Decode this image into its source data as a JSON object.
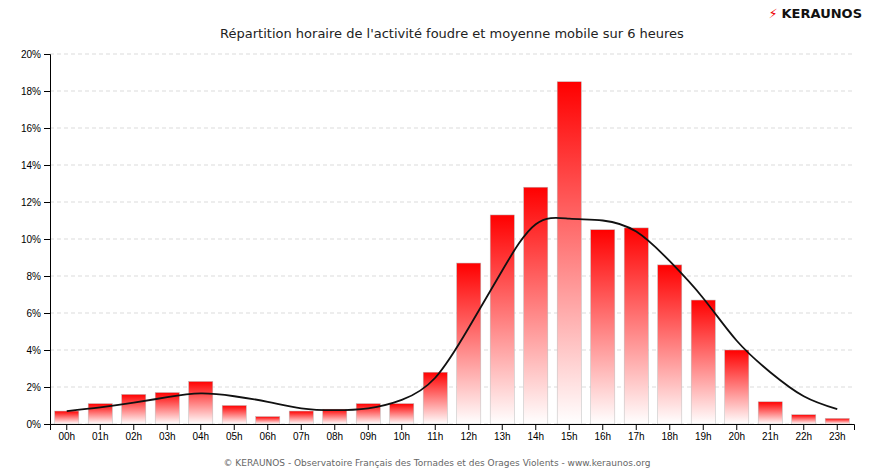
{
  "chart_data": {
    "type": "bar",
    "title": "Répartition horaire de l'activité foudre et moyenne mobile sur 6 heures",
    "categories": [
      "00h",
      "01h",
      "02h",
      "03h",
      "04h",
      "05h",
      "06h",
      "07h",
      "08h",
      "09h",
      "10h",
      "11h",
      "12h",
      "13h",
      "14h",
      "15h",
      "16h",
      "17h",
      "18h",
      "19h",
      "20h",
      "21h",
      "22h",
      "23h"
    ],
    "series": [
      {
        "type": "bar",
        "color": "#ff0000",
        "values": [
          0.7,
          1.1,
          1.6,
          1.7,
          2.3,
          1.0,
          0.4,
          0.7,
          0.8,
          1.1,
          1.1,
          2.8,
          8.7,
          11.3,
          12.8,
          18.5,
          10.5,
          10.6,
          8.6,
          6.7,
          4.0,
          1.2,
          0.5,
          0.3
        ]
      },
      {
        "type": "line",
        "color": "#111111",
        "values": [
          0.7,
          0.9,
          1.15,
          1.45,
          1.65,
          1.5,
          1.2,
          0.85,
          0.75,
          0.85,
          1.3,
          2.5,
          5.2,
          8.3,
          10.8,
          11.1,
          11.0,
          10.4,
          8.8,
          6.8,
          4.5,
          2.8,
          1.5,
          0.8
        ]
      }
    ],
    "ylim": [
      0,
      20
    ],
    "yticks": [
      {
        "value": 0,
        "label": "0%"
      },
      {
        "value": 2,
        "label": "2%"
      },
      {
        "value": 4,
        "label": "4%"
      },
      {
        "value": 6,
        "label": "6%"
      },
      {
        "value": 8,
        "label": "8%"
      },
      {
        "value": 10,
        "label": "10%"
      },
      {
        "value": 12,
        "label": "12%"
      },
      {
        "value": 14,
        "label": "14%"
      },
      {
        "value": 16,
        "label": "16%"
      },
      {
        "value": 18,
        "label": "18%"
      },
      {
        "value": 20,
        "label": "20%"
      }
    ],
    "grid": true,
    "annotations": [
      "⚡",
      "KERAUNOS",
      "© KERAUNOS - Observatoire Français des Tornades et des Orages Violents - www.keraunos.org"
    ]
  }
}
